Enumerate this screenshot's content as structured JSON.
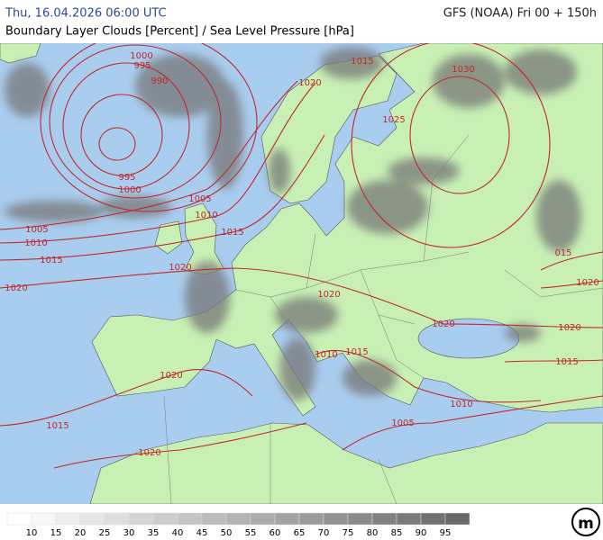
{
  "header": {
    "datetime": "Thu, 16.04.2026 06:00 UTC",
    "model": "GFS (NOAA) Fri 00 + 150h",
    "title": "Boundary Layer Clouds [Percent] / Sea Level Pressure [hPa]"
  },
  "isobar_labels": [
    "1000",
    "995",
    "990",
    "995",
    "1000",
    "1005",
    "1010",
    "1005",
    "1010",
    "1015",
    "1015",
    "1020",
    "1020",
    "1015",
    "1020",
    "1030",
    "1025",
    "015",
    "1020",
    "1020",
    "1020",
    "1020",
    "1015",
    "1010",
    "1015",
    "1010",
    "1005",
    "1020",
    "1015",
    "1020"
  ],
  "legend": {
    "labels": [
      10,
      15,
      20,
      25,
      30,
      35,
      40,
      45,
      50,
      55,
      60,
      65,
      70,
      75,
      80,
      85,
      90,
      95
    ]
  },
  "logo": "m"
}
